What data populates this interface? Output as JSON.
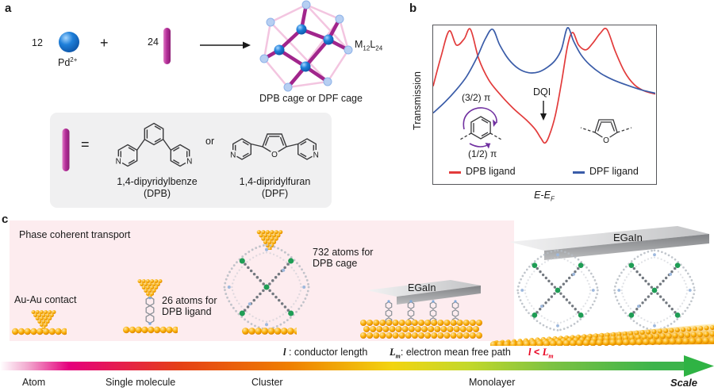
{
  "panel_a": {
    "label": "a",
    "count_metal": "12",
    "pd": "Pd",
    "pd_sup": "2+",
    "plus": "+",
    "count_ligand": "24",
    "formula_m": "M",
    "formula_m_sub": "12",
    "formula_l": "L",
    "formula_l_sub": "24",
    "caption": "DPB cage or DPF cage",
    "box": {
      "equals": "=",
      "or": "or",
      "dpb_name": "1,4-dipyridylbenze",
      "dpb_abbr": "(DPB)",
      "dpf_name": "1,4-dipridylfuran",
      "dpf_abbr": "(DPF)"
    }
  },
  "atoms": {
    "n": "N",
    "o": "O"
  },
  "panel_b": {
    "label": "b",
    "ylabel": "Transmission",
    "x_e1": "E",
    "x_dash": "-",
    "x_e2": "E",
    "x_sub": "F",
    "dqi": "DQI",
    "pi_top": "(3/2) π",
    "pi_bottom": "(1/2) π",
    "legend": [
      {
        "label": "DPB ligand",
        "color": "#e23b3b"
      },
      {
        "label": "DPF ligand",
        "color": "#3a5ca8"
      }
    ]
  },
  "chart_data": {
    "type": "line",
    "title": "",
    "xlabel": "E-EF",
    "ylabel": "Transmission",
    "axis_note": "schematic plot, no numeric ticks; coordinates normalized 0-1",
    "legend_position": "bottom-inside",
    "annotations": [
      {
        "text": "DQI",
        "x": 0.5,
        "y": 0.255,
        "note": "destructive quantum interference dip of DPB curve"
      }
    ],
    "series": [
      {
        "name": "DPB ligand",
        "color": "#e23b3b",
        "points": [
          [
            0.0,
            0.615
          ],
          [
            0.035,
            0.8
          ],
          [
            0.072,
            0.965
          ],
          [
            0.105,
            0.875
          ],
          [
            0.14,
            0.915
          ],
          [
            0.168,
            0.975
          ],
          [
            0.205,
            0.79
          ],
          [
            0.25,
            0.655
          ],
          [
            0.3,
            0.565
          ],
          [
            0.36,
            0.475
          ],
          [
            0.42,
            0.4
          ],
          [
            0.46,
            0.34
          ],
          [
            0.485,
            0.285
          ],
          [
            0.503,
            0.255
          ],
          [
            0.522,
            0.3
          ],
          [
            0.55,
            0.43
          ],
          [
            0.578,
            0.64
          ],
          [
            0.605,
            0.87
          ],
          [
            0.628,
            0.955
          ],
          [
            0.655,
            0.875
          ],
          [
            0.688,
            0.845
          ],
          [
            0.72,
            0.89
          ],
          [
            0.752,
            0.95
          ],
          [
            0.782,
            0.975
          ],
          [
            0.82,
            0.835
          ],
          [
            0.862,
            0.705
          ],
          [
            0.905,
            0.625
          ],
          [
            0.95,
            0.585
          ],
          [
            1.0,
            0.565
          ]
        ]
      },
      {
        "name": "DPF ligand",
        "color": "#3a5ca8",
        "points": [
          [
            0.0,
            0.445
          ],
          [
            0.05,
            0.51
          ],
          [
            0.1,
            0.585
          ],
          [
            0.15,
            0.675
          ],
          [
            0.195,
            0.79
          ],
          [
            0.235,
            0.915
          ],
          [
            0.268,
            0.975
          ],
          [
            0.3,
            0.875
          ],
          [
            0.34,
            0.785
          ],
          [
            0.385,
            0.725
          ],
          [
            0.43,
            0.7
          ],
          [
            0.475,
            0.705
          ],
          [
            0.515,
            0.735
          ],
          [
            0.55,
            0.78
          ],
          [
            0.578,
            0.85
          ],
          [
            0.605,
            0.985
          ],
          [
            0.632,
            0.9
          ],
          [
            0.665,
            0.815
          ],
          [
            0.705,
            0.75
          ],
          [
            0.755,
            0.695
          ],
          [
            0.81,
            0.655
          ],
          [
            0.875,
            0.62
          ],
          [
            0.94,
            0.59
          ],
          [
            1.0,
            0.57
          ]
        ]
      }
    ]
  },
  "panel_c": {
    "label": "c",
    "title": "Phase coherent transport",
    "au_contact": "Au-Au contact",
    "mol_l1": "26 atoms for",
    "mol_l2": "DPB ligand",
    "cage_l1": "732 atoms for",
    "cage_l2": "DPB cage",
    "egain_small": "EGaIn",
    "egain_big": "EGaIn",
    "def_l_sym": "l",
    "def_l_text": " : conductor length",
    "def_lm_sym": "L",
    "def_lm_sub": "m",
    "def_lm_text": ": electron mean free path",
    "ineq_l": "l",
    "ineq_op": "<",
    "ineq_L": "L",
    "ineq_sub": "m",
    "scale_labels": [
      "Atom",
      "Single molecule",
      "Cluster",
      "Monolayer"
    ],
    "scale": "Scale"
  },
  "colors": {
    "gold": "#f7a600",
    "magenta_rod": "#b5309a",
    "pd_blue": "#1e7fd9",
    "dpb_red": "#e23b3b",
    "dpf_blue": "#3a5ca8",
    "pink_bg": "#fdecef",
    "arrow_green": "#3cb44b",
    "purple": "#7030a0",
    "ineq_red": "#e8001f"
  }
}
